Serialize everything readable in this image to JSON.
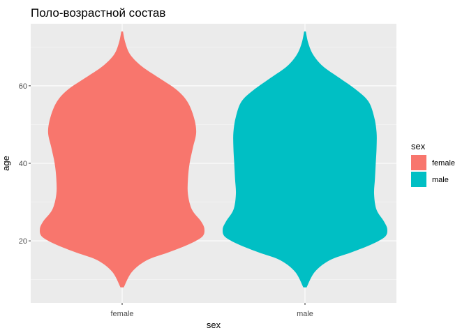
{
  "chart_data": {
    "type": "violin",
    "title": "Поло-возрастной состав",
    "xlabel": "sex",
    "ylabel": "age",
    "ylim": [
      4,
      76
    ],
    "y_ticks": [
      20,
      40,
      60
    ],
    "categories": [
      "female",
      "male"
    ],
    "legend": {
      "title": "sex",
      "position": "right",
      "entries": [
        "female",
        "male"
      ]
    },
    "series": [
      {
        "name": "female",
        "color": "#F8766D",
        "y_range": [
          8,
          74
        ],
        "density_profile": [
          [
            8,
            0.02
          ],
          [
            12,
            0.12
          ],
          [
            15,
            0.3
          ],
          [
            17,
            0.56
          ],
          [
            19,
            0.8
          ],
          [
            21,
            0.97
          ],
          [
            23,
            1.0
          ],
          [
            25,
            0.96
          ],
          [
            28,
            0.85
          ],
          [
            32,
            0.8
          ],
          [
            36,
            0.8
          ],
          [
            40,
            0.82
          ],
          [
            44,
            0.86
          ],
          [
            48,
            0.9
          ],
          [
            52,
            0.87
          ],
          [
            56,
            0.79
          ],
          [
            59,
            0.66
          ],
          [
            62,
            0.45
          ],
          [
            65,
            0.24
          ],
          [
            68,
            0.1
          ],
          [
            71,
            0.04
          ],
          [
            74,
            0.01
          ]
        ]
      },
      {
        "name": "male",
        "color": "#00BFC4",
        "y_range": [
          8,
          74
        ],
        "density_profile": [
          [
            8,
            0.02
          ],
          [
            12,
            0.12
          ],
          [
            15,
            0.3
          ],
          [
            17,
            0.56
          ],
          [
            19,
            0.8
          ],
          [
            21,
            0.97
          ],
          [
            23,
            1.0
          ],
          [
            25,
            0.96
          ],
          [
            28,
            0.87
          ],
          [
            32,
            0.84
          ],
          [
            36,
            0.85
          ],
          [
            40,
            0.86
          ],
          [
            44,
            0.87
          ],
          [
            48,
            0.87
          ],
          [
            52,
            0.84
          ],
          [
            56,
            0.77
          ],
          [
            59,
            0.62
          ],
          [
            62,
            0.42
          ],
          [
            65,
            0.22
          ],
          [
            68,
            0.1
          ],
          [
            71,
            0.04
          ],
          [
            74,
            0.01
          ]
        ]
      }
    ]
  },
  "style": {
    "panel_bg": "#EBEBEB",
    "grid_major": "#FFFFFF"
  }
}
